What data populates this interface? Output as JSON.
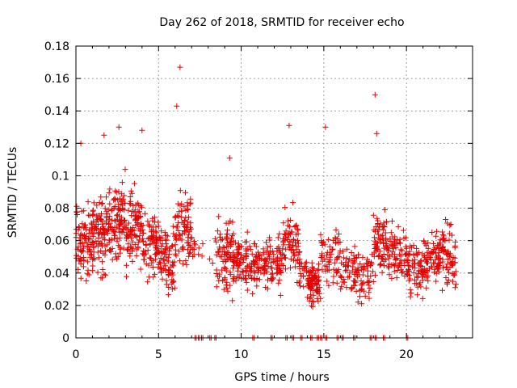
{
  "chart_data": {
    "type": "scatter",
    "title": "Day 262 of 2018, SRMTID for receiver echo",
    "xlabel": "GPS time / hours",
    "ylabel": "SRMTID / TECUs",
    "xlim": [
      0,
      24
    ],
    "ylim": [
      0,
      0.18
    ],
    "xticks": [
      "0",
      "5",
      "10",
      "15",
      "20"
    ],
    "yticks": [
      "0",
      "0.02",
      "0.04",
      "0.06",
      "0.08",
      "0.1",
      "0.12",
      "0.14",
      "0.16",
      "0.18"
    ],
    "grid": true,
    "marker": "plus",
    "series_color": "#e60000",
    "zero_points_x": [
      7.2,
      7.4,
      7.6,
      8.1,
      8.4,
      10.7,
      11.8,
      12.7,
      13.1,
      13.6,
      14.2,
      14.6,
      14.8,
      15.1,
      15.8,
      16.1,
      16.8,
      17.8,
      18.1,
      18.6,
      20.0
    ],
    "notable_points": [
      {
        "x": 6.3,
        "y": 0.167
      },
      {
        "x": 18.1,
        "y": 0.15
      },
      {
        "x": 6.1,
        "y": 0.143
      },
      {
        "x": 12.9,
        "y": 0.131
      },
      {
        "x": 15.1,
        "y": 0.13
      },
      {
        "x": 2.6,
        "y": 0.13
      },
      {
        "x": 4.0,
        "y": 0.128
      },
      {
        "x": 18.2,
        "y": 0.126
      },
      {
        "x": 1.7,
        "y": 0.125
      },
      {
        "x": 9.3,
        "y": 0.111
      },
      {
        "x": 0.3,
        "y": 0.12
      }
    ],
    "density_profile": [
      {
        "x_start": 0.0,
        "x_end": 1.0,
        "y_min": 0.03,
        "y_max": 0.09,
        "count": 90
      },
      {
        "x_start": 1.0,
        "x_end": 2.0,
        "y_min": 0.03,
        "y_max": 0.1,
        "count": 100
      },
      {
        "x_start": 2.0,
        "x_end": 3.0,
        "y_min": 0.035,
        "y_max": 0.11,
        "count": 100
      },
      {
        "x_start": 3.0,
        "x_end": 4.0,
        "y_min": 0.035,
        "y_max": 0.1,
        "count": 90
      },
      {
        "x_start": 4.0,
        "x_end": 5.0,
        "y_min": 0.03,
        "y_max": 0.085,
        "count": 80
      },
      {
        "x_start": 5.0,
        "x_end": 6.0,
        "y_min": 0.02,
        "y_max": 0.08,
        "count": 80
      },
      {
        "x_start": 6.0,
        "x_end": 7.0,
        "y_min": 0.035,
        "y_max": 0.1,
        "count": 80
      },
      {
        "x_start": 7.0,
        "x_end": 8.5,
        "y_min": 0.04,
        "y_max": 0.07,
        "count": 15
      },
      {
        "x_start": 8.5,
        "x_end": 9.5,
        "y_min": 0.02,
        "y_max": 0.085,
        "count": 80
      },
      {
        "x_start": 9.5,
        "x_end": 10.5,
        "y_min": 0.025,
        "y_max": 0.07,
        "count": 80
      },
      {
        "x_start": 10.5,
        "x_end": 11.5,
        "y_min": 0.025,
        "y_max": 0.065,
        "count": 70
      },
      {
        "x_start": 11.5,
        "x_end": 12.5,
        "y_min": 0.025,
        "y_max": 0.07,
        "count": 70
      },
      {
        "x_start": 12.5,
        "x_end": 13.5,
        "y_min": 0.03,
        "y_max": 0.09,
        "count": 70
      },
      {
        "x_start": 13.5,
        "x_end": 14.0,
        "y_min": 0.025,
        "y_max": 0.06,
        "count": 25
      },
      {
        "x_start": 14.0,
        "x_end": 14.8,
        "y_min": 0.015,
        "y_max": 0.05,
        "count": 90
      },
      {
        "x_start": 14.8,
        "x_end": 16.0,
        "y_min": 0.025,
        "y_max": 0.07,
        "count": 60
      },
      {
        "x_start": 16.0,
        "x_end": 17.0,
        "y_min": 0.02,
        "y_max": 0.065,
        "count": 55
      },
      {
        "x_start": 17.0,
        "x_end": 18.0,
        "y_min": 0.015,
        "y_max": 0.06,
        "count": 50
      },
      {
        "x_start": 18.0,
        "x_end": 19.0,
        "y_min": 0.03,
        "y_max": 0.085,
        "count": 80
      },
      {
        "x_start": 19.0,
        "x_end": 20.0,
        "y_min": 0.03,
        "y_max": 0.075,
        "count": 60
      },
      {
        "x_start": 20.0,
        "x_end": 21.0,
        "y_min": 0.02,
        "y_max": 0.065,
        "count": 70
      },
      {
        "x_start": 21.0,
        "x_end": 22.0,
        "y_min": 0.025,
        "y_max": 0.07,
        "count": 75
      },
      {
        "x_start": 22.0,
        "x_end": 23.0,
        "y_min": 0.025,
        "y_max": 0.08,
        "count": 75
      }
    ]
  }
}
